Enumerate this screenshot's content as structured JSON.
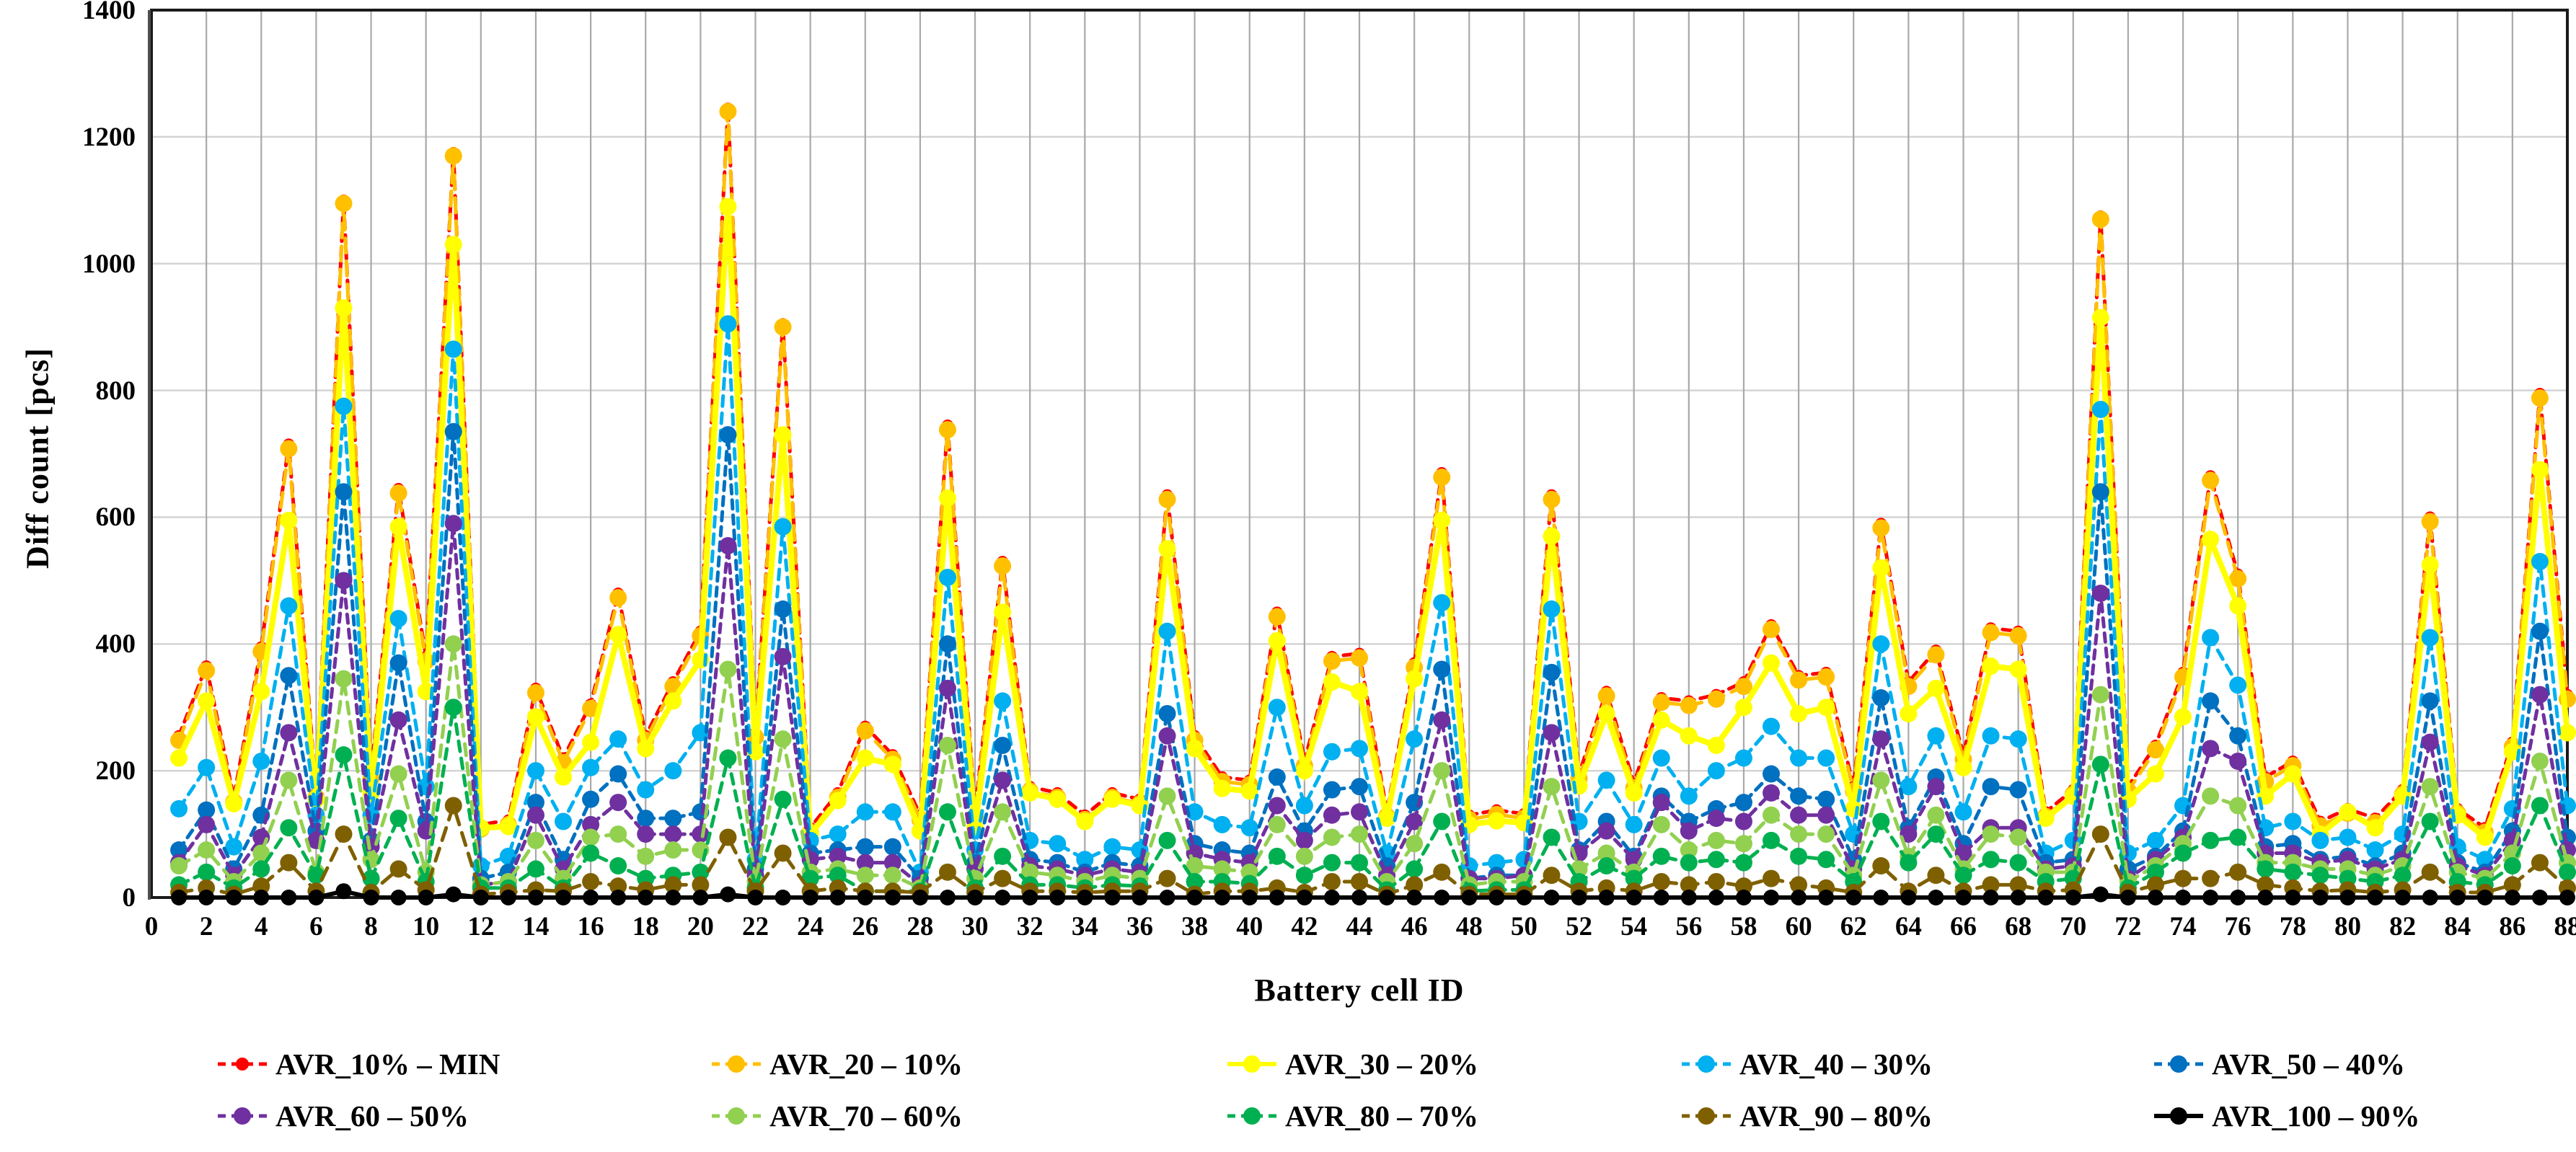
{
  "background": "#FFFFFF",
  "axes": {
    "y_title": "Diff count [pcs]",
    "x_title": "Battery cell ID",
    "y_ticks": [
      0,
      200,
      400,
      600,
      800,
      1000,
      1200,
      1400
    ],
    "x_ticks": [
      0,
      2,
      4,
      6,
      8,
      10,
      12,
      14,
      16,
      18,
      20,
      22,
      24,
      26,
      28,
      30,
      32,
      34,
      36,
      38,
      40,
      42,
      44,
      46,
      48,
      50,
      52,
      54,
      56,
      58,
      60,
      62,
      64,
      66,
      68,
      70,
      72,
      74,
      76,
      78,
      80,
      82,
      84,
      86,
      88
    ]
  },
  "legend": {
    "rows": [
      [
        "AVR_10% – MIN",
        "AVR_20 – 10%",
        "AVR_30 – 20%",
        "AVR_40 – 30%",
        "AVR_50 – 40%"
      ],
      [
        "AVR_60 – 50%",
        "AVR_70 – 60%",
        "AVR_80 – 70%",
        "AVR_90 – 80%",
        "AVR_100 – 90%"
      ]
    ]
  },
  "chart_data": {
    "type": "line",
    "title": "",
    "xlabel": "Battery cell ID",
    "ylabel": "Diff count [pcs]",
    "xlim": [
      0,
      88
    ],
    "ylim": [
      0,
      1400
    ],
    "grid": true,
    "legend_position": "bottom",
    "x": [
      1,
      2,
      3,
      4,
      5,
      6,
      7,
      8,
      9,
      10,
      11,
      12,
      13,
      14,
      15,
      16,
      17,
      18,
      19,
      20,
      21,
      22,
      23,
      24,
      25,
      26,
      27,
      28,
      29,
      30,
      31,
      32,
      33,
      34,
      35,
      36,
      37,
      38,
      39,
      40,
      41,
      42,
      43,
      44,
      45,
      46,
      47,
      48,
      49,
      50,
      51,
      52,
      53,
      54,
      55,
      56,
      57,
      58,
      59,
      60,
      61,
      62,
      63,
      64,
      65,
      66,
      67,
      68,
      69,
      70,
      71,
      72,
      73,
      74,
      75,
      76,
      77,
      78,
      79,
      80,
      81,
      82,
      83,
      84,
      85,
      86,
      87,
      88
    ],
    "series": [
      {
        "name": "AVR_10% – MIN",
        "color": "#FF0000",
        "dash": "12 9",
        "line_width": 5,
        "marker_r": 8,
        "values": [
          255,
          365,
          158,
          395,
          715,
          165,
          1100,
          195,
          645,
          380,
          1175,
          115,
          122,
          330,
          220,
          305,
          480,
          255,
          340,
          420,
          1245,
          260,
          905,
          110,
          165,
          270,
          225,
          130,
          745,
          135,
          530,
          175,
          165,
          130,
          165,
          155,
          635,
          255,
          190,
          185,
          450,
          215,
          380,
          385,
          135,
          370,
          670,
          130,
          138,
          132,
          635,
          195,
          325,
          180,
          315,
          310,
          320,
          340,
          430,
          350,
          355,
          175,
          590,
          340,
          390,
          225,
          425,
          420,
          135,
          170,
          1075,
          175,
          240,
          355,
          665,
          510,
          190,
          215,
          120,
          140,
          125,
          170,
          600,
          140,
          110,
          245,
          795,
          320
        ]
      },
      {
        "name": "AVR_20 – 10%",
        "color": "#FFC000",
        "dash": "20 12",
        "line_width": 5,
        "marker_r": 12,
        "values": [
          248,
          358,
          151,
          388,
          708,
          158,
          1095,
          188,
          638,
          373,
          1170,
          108,
          115,
          323,
          213,
          298,
          473,
          248,
          333,
          413,
          1240,
          253,
          900,
          103,
          158,
          263,
          218,
          123,
          738,
          128,
          523,
          168,
          158,
          123,
          158,
          148,
          628,
          248,
          183,
          178,
          443,
          208,
          373,
          378,
          128,
          363,
          663,
          123,
          131,
          125,
          628,
          188,
          318,
          173,
          308,
          303,
          313,
          333,
          423,
          343,
          348,
          168,
          583,
          333,
          383,
          218,
          418,
          413,
          128,
          163,
          1070,
          168,
          233,
          348,
          658,
          503,
          183,
          208,
          113,
          133,
          118,
          163,
          593,
          133,
          103,
          238,
          788,
          313
        ]
      },
      {
        "name": "AVR_30 – 20%",
        "color": "#FFFF00",
        "dash": "",
        "line_width": 8,
        "marker_r": 12,
        "values": [
          220,
          310,
          148,
          325,
          595,
          155,
          930,
          165,
          585,
          325,
          1030,
          110,
          112,
          285,
          190,
          245,
          415,
          235,
          310,
          375,
          1090,
          230,
          730,
          100,
          153,
          220,
          210,
          105,
          630,
          110,
          450,
          165,
          155,
          120,
          155,
          145,
          550,
          235,
          172,
          168,
          405,
          200,
          340,
          325,
          125,
          345,
          595,
          115,
          121,
          118,
          570,
          176,
          290,
          165,
          280,
          255,
          240,
          300,
          370,
          290,
          300,
          140,
          520,
          290,
          330,
          205,
          365,
          360,
          125,
          160,
          915,
          155,
          195,
          285,
          565,
          460,
          160,
          195,
          100,
          135,
          110,
          160,
          525,
          130,
          95,
          230,
          675,
          260
        ]
      },
      {
        "name": "AVR_40 – 30%",
        "color": "#00B0F0",
        "dash": "14 10",
        "line_width": 5,
        "marker_r": 12,
        "values": [
          140,
          205,
          80,
          215,
          460,
          130,
          775,
          130,
          440,
          175,
          865,
          50,
          65,
          200,
          120,
          205,
          250,
          170,
          200,
          260,
          905,
          60,
          585,
          90,
          100,
          135,
          135,
          40,
          505,
          75,
          310,
          90,
          85,
          60,
          80,
          75,
          420,
          135,
          115,
          110,
          300,
          145,
          230,
          235,
          70,
          250,
          465,
          50,
          55,
          60,
          455,
          120,
          185,
          115,
          220,
          160,
          200,
          220,
          270,
          220,
          220,
          100,
          400,
          175,
          255,
          135,
          255,
          250,
          70,
          90,
          770,
          70,
          90,
          145,
          410,
          335,
          110,
          120,
          90,
          95,
          75,
          100,
          410,
          80,
          60,
          140,
          530,
          145
        ]
      },
      {
        "name": "AVR_50 – 40%",
        "color": "#0070C0",
        "dash": "12 9",
        "line_width": 5,
        "marker_r": 12,
        "values": [
          75,
          138,
          45,
          130,
          350,
          105,
          640,
          90,
          370,
          120,
          735,
          30,
          40,
          150,
          60,
          155,
          195,
          125,
          125,
          135,
          730,
          45,
          455,
          70,
          75,
          80,
          80,
          30,
          400,
          55,
          240,
          60,
          55,
          40,
          55,
          50,
          290,
          85,
          75,
          70,
          190,
          105,
          170,
          175,
          50,
          150,
          360,
          30,
          35,
          35,
          355,
          75,
          120,
          65,
          160,
          120,
          140,
          150,
          195,
          160,
          155,
          60,
          315,
          110,
          190,
          85,
          175,
          170,
          55,
          60,
          640,
          45,
          65,
          105,
          310,
          255,
          80,
          85,
          60,
          65,
          50,
          70,
          310,
          55,
          40,
          105,
          420,
          95
        ]
      },
      {
        "name": "AVR_60 – 50%",
        "color": "#7030A0",
        "dash": "12 9",
        "line_width": 5,
        "marker_r": 12,
        "values": [
          55,
          115,
          35,
          95,
          260,
          90,
          500,
          80,
          280,
          105,
          590,
          20,
          25,
          130,
          45,
          115,
          150,
          100,
          100,
          100,
          555,
          35,
          380,
          60,
          65,
          55,
          55,
          20,
          330,
          45,
          185,
          50,
          45,
          35,
          45,
          40,
          255,
          70,
          60,
          55,
          145,
          90,
          130,
          135,
          35,
          120,
          280,
          30,
          30,
          35,
          260,
          70,
          105,
          60,
          150,
          105,
          125,
          120,
          165,
          130,
          130,
          45,
          250,
          100,
          175,
          70,
          110,
          110,
          45,
          50,
          480,
          30,
          60,
          95,
          235,
          215,
          70,
          70,
          55,
          60,
          45,
          60,
          245,
          50,
          35,
          90,
          320,
          75
        ]
      },
      {
        "name": "AVR_70 – 60%",
        "color": "#92D050",
        "dash": "16 11",
        "line_width": 5,
        "marker_r": 12,
        "values": [
          50,
          75,
          25,
          70,
          185,
          40,
          345,
          60,
          195,
          40,
          400,
          20,
          25,
          90,
          30,
          95,
          100,
          65,
          75,
          75,
          360,
          25,
          250,
          40,
          45,
          35,
          35,
          15,
          240,
          30,
          135,
          40,
          35,
          25,
          35,
          30,
          160,
          50,
          45,
          40,
          115,
          65,
          95,
          100,
          25,
          85,
          200,
          20,
          25,
          25,
          175,
          45,
          70,
          40,
          115,
          75,
          90,
          85,
          130,
          100,
          100,
          35,
          185,
          65,
          130,
          45,
          100,
          95,
          40,
          40,
          320,
          25,
          50,
          85,
          160,
          145,
          55,
          55,
          45,
          45,
          35,
          50,
          175,
          40,
          30,
          70,
          215,
          55
        ]
      },
      {
        "name": "AVR_80 – 70%",
        "color": "#00B050",
        "dash": "14 10",
        "line_width": 5,
        "marker_r": 12,
        "values": [
          20,
          40,
          15,
          45,
          110,
          35,
          225,
          30,
          125,
          25,
          300,
          15,
          15,
          45,
          15,
          70,
          50,
          30,
          35,
          40,
          220,
          15,
          155,
          30,
          35,
          10,
          10,
          10,
          135,
          15,
          65,
          20,
          20,
          15,
          20,
          18,
          90,
          25,
          25,
          22,
          65,
          35,
          55,
          55,
          12,
          45,
          120,
          10,
          12,
          12,
          95,
          25,
          50,
          30,
          65,
          55,
          60,
          55,
          90,
          65,
          60,
          25,
          120,
          55,
          100,
          35,
          60,
          55,
          25,
          30,
          210,
          15,
          40,
          70,
          90,
          95,
          45,
          40,
          35,
          30,
          25,
          35,
          120,
          25,
          20,
          50,
          145,
          40
        ]
      },
      {
        "name": "AVR_90 – 80%",
        "color": "#7F6000",
        "dash": "18 12",
        "line_width": 5,
        "marker_r": 12,
        "values": [
          8,
          15,
          5,
          18,
          55,
          10,
          100,
          8,
          45,
          12,
          145,
          5,
          8,
          12,
          10,
          25,
          18,
          12,
          20,
          20,
          95,
          10,
          70,
          10,
          15,
          10,
          10,
          8,
          40,
          8,
          30,
          10,
          10,
          8,
          10,
          10,
          30,
          5,
          10,
          10,
          15,
          8,
          25,
          25,
          5,
          20,
          40,
          5,
          5,
          5,
          35,
          10,
          15,
          10,
          25,
          20,
          25,
          18,
          30,
          20,
          15,
          8,
          50,
          10,
          35,
          10,
          20,
          20,
          10,
          12,
          100,
          8,
          20,
          30,
          30,
          40,
          20,
          15,
          10,
          12,
          8,
          12,
          40,
          8,
          8,
          20,
          55,
          15
        ]
      },
      {
        "name": "AVR_100 – 90%",
        "color": "#000000",
        "dash": "",
        "line_width": 6,
        "marker_r": 11,
        "values": [
          0,
          0,
          0,
          0,
          0,
          0,
          10,
          0,
          0,
          0,
          5,
          0,
          0,
          0,
          0,
          0,
          0,
          0,
          0,
          0,
          5,
          0,
          0,
          0,
          0,
          0,
          0,
          0,
          0,
          0,
          0,
          0,
          0,
          0,
          0,
          0,
          0,
          0,
          0,
          0,
          0,
          0,
          0,
          0,
          0,
          0,
          0,
          0,
          0,
          0,
          0,
          0,
          0,
          0,
          0,
          0,
          0,
          0,
          0,
          0,
          0,
          0,
          0,
          0,
          0,
          0,
          0,
          0,
          0,
          0,
          5,
          0,
          0,
          0,
          0,
          0,
          0,
          0,
          0,
          0,
          0,
          0,
          0,
          0,
          0,
          0,
          0,
          0
        ]
      }
    ],
    "style": {
      "grid_color_h": "#D2D2D2",
      "grid_color_v": "#A9A9A9",
      "border_color": "#1A1A1A",
      "plot_bg": "#FFFFFF"
    }
  }
}
